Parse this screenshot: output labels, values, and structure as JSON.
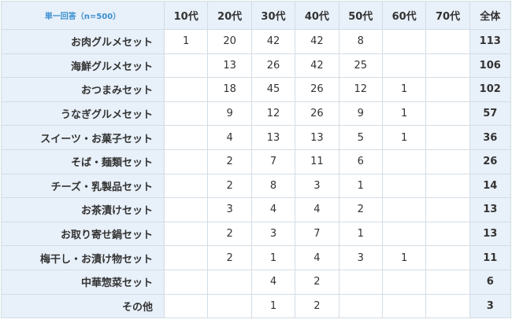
{
  "table": {
    "corner_label": "単一回答（n=500）",
    "age_headers": [
      "10代",
      "20代",
      "30代",
      "40代",
      "50代",
      "60代",
      "70代"
    ],
    "total_header": "全体",
    "rows": [
      {
        "label": "お肉グルメセット",
        "values": [
          "1",
          "20",
          "42",
          "42",
          "8",
          "",
          ""
        ],
        "total": "113"
      },
      {
        "label": "海鮮グルメセット",
        "values": [
          "",
          "13",
          "26",
          "42",
          "25",
          "",
          ""
        ],
        "total": "106"
      },
      {
        "label": "おつまみセット",
        "values": [
          "",
          "18",
          "45",
          "26",
          "12",
          "1",
          ""
        ],
        "total": "102"
      },
      {
        "label": "うなぎグルメセット",
        "values": [
          "",
          "9",
          "12",
          "26",
          "9",
          "1",
          ""
        ],
        "total": "57"
      },
      {
        "label": "スイーツ・お菓子セット",
        "values": [
          "",
          "4",
          "13",
          "13",
          "5",
          "1",
          ""
        ],
        "total": "36"
      },
      {
        "label": "そば・麺類セット",
        "values": [
          "",
          "2",
          "7",
          "11",
          "6",
          "",
          ""
        ],
        "total": "26"
      },
      {
        "label": "チーズ・乳製品セット",
        "values": [
          "",
          "2",
          "8",
          "3",
          "1",
          "",
          ""
        ],
        "total": "14"
      },
      {
        "label": "お茶漬けセット",
        "values": [
          "",
          "3",
          "4",
          "4",
          "2",
          "",
          ""
        ],
        "total": "13"
      },
      {
        "label": "お取り寄せ鍋セット",
        "values": [
          "",
          "2",
          "3",
          "7",
          "1",
          "",
          ""
        ],
        "total": "13"
      },
      {
        "label": "梅干し・お漬け物セット",
        "values": [
          "",
          "2",
          "1",
          "4",
          "3",
          "1",
          ""
        ],
        "total": "11"
      },
      {
        "label": "中華惣菜セット",
        "values": [
          "",
          "",
          "4",
          "2",
          "",
          "",
          ""
        ],
        "total": "6"
      },
      {
        "label": "その他",
        "values": [
          "",
          "",
          "1",
          "2",
          "",
          "",
          ""
        ],
        "total": "3"
      }
    ]
  },
  "colors": {
    "header_bg": "#e8f0f9",
    "border": "#d3dde6",
    "corner_text": "#3a8fd0",
    "text": "#333333"
  }
}
